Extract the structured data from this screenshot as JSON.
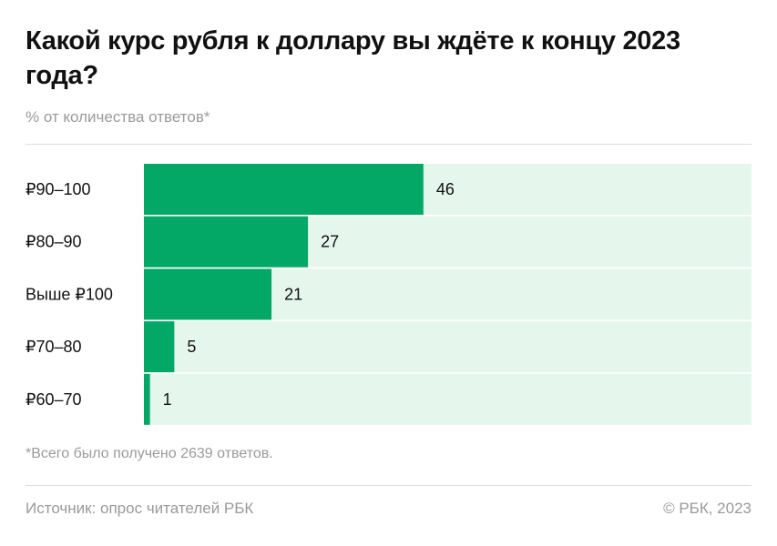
{
  "title": "Какой курс рубля к доллару вы ждёте к концу 2023 года?",
  "subtitle": "% от количества ответов*",
  "footnote": "*Всего было получено 2639 ответов.",
  "source": "Источник: опрос читателей РБК",
  "copyright": "© РБК, 2023",
  "colors": {
    "bar": "#04a866",
    "track": "#e5f6ed"
  },
  "chart_data": {
    "type": "bar",
    "orientation": "horizontal",
    "categories": [
      "₽90–100",
      "₽80–90",
      "Выше ₽100",
      "₽70–80",
      "₽60–70"
    ],
    "values": [
      46,
      27,
      21,
      5,
      1
    ],
    "xlim": [
      0,
      100
    ],
    "grid": false,
    "data_labels": true
  }
}
